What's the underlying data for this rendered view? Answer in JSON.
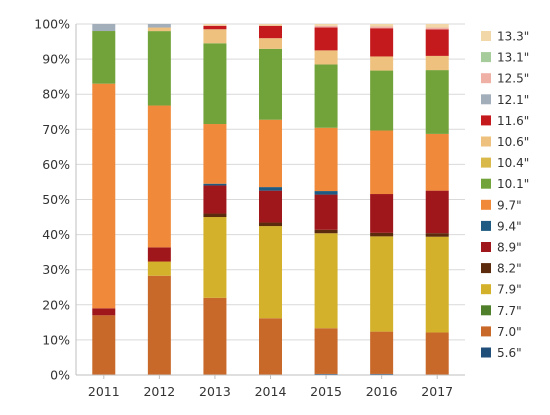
{
  "chart_data": {
    "type": "bar",
    "stacked": true,
    "percent": true,
    "categories": [
      "2011",
      "2012",
      "2013",
      "2014",
      "2015",
      "2016",
      "2017"
    ],
    "ylim": [
      0,
      100
    ],
    "yticks": [
      "0%",
      "10%",
      "20%",
      "30%",
      "40%",
      "50%",
      "60%",
      "70%",
      "80%",
      "90%",
      "100%"
    ],
    "grid": true,
    "legend_position": "right",
    "series": [
      {
        "name": "5.6\"",
        "color": "#1f4e79",
        "values": [
          0,
          0,
          0,
          0,
          0.3,
          0.3,
          0
        ]
      },
      {
        "name": "7.0\"",
        "color": "#c8692a",
        "values": [
          17,
          28,
          22,
          16,
          13,
          12,
          12
        ]
      },
      {
        "name": "7.7\"",
        "color": "#4f7f2a",
        "values": [
          0,
          0,
          0,
          0,
          0,
          0,
          0
        ]
      },
      {
        "name": "7.9\"",
        "color": "#d4b12a",
        "values": [
          0,
          4,
          23,
          26,
          27,
          27,
          27
        ]
      },
      {
        "name": "8.2\"",
        "color": "#5c2a0c",
        "values": [
          0,
          0,
          1,
          1,
          1,
          1,
          1
        ]
      },
      {
        "name": "8.9\"",
        "color": "#a0171b",
        "values": [
          2,
          4,
          8,
          9,
          10,
          11,
          12
        ]
      },
      {
        "name": "9.4\"",
        "color": "#1f5a82",
        "values": [
          0,
          0,
          0.5,
          1,
          1,
          0,
          0
        ]
      },
      {
        "name": "9.7\"",
        "color": "#f0893a",
        "values": [
          64,
          40,
          17,
          19,
          18,
          18,
          16
        ]
      },
      {
        "name": "10.1\"",
        "color": "#72a33b",
        "values": [
          15,
          21,
          23,
          20,
          18,
          17,
          18
        ]
      },
      {
        "name": "10.4\"",
        "color": "#d9b94a",
        "values": [
          0,
          0,
          0,
          0,
          0,
          0,
          0
        ]
      },
      {
        "name": "10.6\"",
        "color": "#eec17e",
        "values": [
          0,
          1,
          4,
          3,
          4,
          4,
          4
        ]
      },
      {
        "name": "11.6\"",
        "color": "#c41a1e",
        "values": [
          0,
          0,
          1,
          3.5,
          6.5,
          8,
          7.5
        ]
      },
      {
        "name": "12.1\"",
        "color": "#a3aebb",
        "values": [
          2,
          1,
          0,
          0,
          0,
          0,
          0
        ]
      },
      {
        "name": "12.5\"",
        "color": "#efb1a6",
        "values": [
          0,
          0,
          0,
          0,
          0.5,
          0.5,
          0.5
        ]
      },
      {
        "name": "13.1\"",
        "color": "#a5cc9a",
        "values": [
          0,
          0,
          0,
          0,
          0,
          0,
          0
        ]
      },
      {
        "name": "13.3\"",
        "color": "#f2d7a8",
        "values": [
          0,
          0,
          0.5,
          0.5,
          0.5,
          0.7,
          1
        ]
      }
    ]
  }
}
